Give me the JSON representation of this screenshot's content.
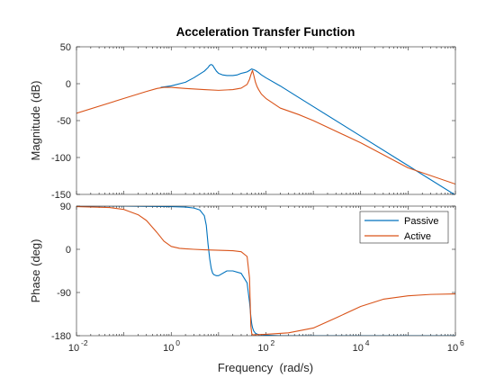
{
  "figure": {
    "title": "Acceleration Transfer Function",
    "xlabel": "Frequency  (rad/s)"
  },
  "colors": {
    "passive": "#0072BD",
    "active": "#D95319",
    "axes": "#262626"
  },
  "chart_data": [
    {
      "type": "line",
      "title": "Acceleration Transfer Function",
      "xlabel": "",
      "ylabel": "Magnitude (dB)",
      "xscale": "log",
      "xlim": [
        0.01,
        1000000
      ],
      "ylim": [
        -150,
        50
      ],
      "yticks": [
        50,
        0,
        -50,
        -100,
        -150
      ],
      "ytick_labels": [
        "50",
        "0",
        "-50",
        "-100",
        "-150"
      ],
      "xtick_labels": [],
      "grid": false,
      "series": [
        {
          "name": "Passive",
          "color": "#0072BD",
          "x": [
            0.6,
            1,
            2,
            3,
            5,
            6,
            6.5,
            7,
            7.5,
            8,
            9,
            10,
            12,
            15,
            20,
            25,
            30,
            35,
            40,
            45,
            50,
            55,
            60,
            70,
            80,
            100,
            200,
            500,
            1000,
            10000,
            100000,
            1000000
          ],
          "y": [
            -5,
            -3,
            2,
            8,
            17,
            22,
            25,
            26,
            25,
            22,
            17,
            14,
            12,
            11,
            11,
            12,
            14,
            15,
            16,
            18,
            20,
            19,
            18,
            15,
            12,
            8,
            -3,
            -19,
            -31,
            -71,
            -111,
            -151
          ]
        },
        {
          "name": "Active",
          "color": "#D95319",
          "x": [
            0.01,
            0.1,
            0.3,
            0.5,
            0.7,
            1,
            2,
            5,
            10,
            20,
            30,
            40,
            45,
            48,
            50,
            52,
            55,
            58,
            60,
            65,
            70,
            80,
            100,
            200,
            500,
            1000,
            10000,
            100000,
            1000000
          ],
          "y": [
            -40,
            -20,
            -10.5,
            -6.5,
            -5,
            -5,
            -6.5,
            -8,
            -9,
            -8,
            -6,
            -1,
            6,
            12,
            15,
            18,
            12,
            6,
            2,
            -4,
            -8,
            -14,
            -20,
            -33,
            -42,
            -50,
            -80,
            -114,
            -136
          ]
        }
      ]
    },
    {
      "type": "line",
      "xlabel": "Frequency  (rad/s)",
      "ylabel": "Phase (deg)",
      "xscale": "log",
      "xlim": [
        0.01,
        1000000
      ],
      "ylim": [
        -180,
        90
      ],
      "yticks": [
        90,
        0,
        -90,
        -180
      ],
      "ytick_labels": [
        "90",
        "0",
        "-90",
        "-180"
      ],
      "xtick_base": "10",
      "xtick_exponents": [
        "-2",
        "0",
        "2",
        "4",
        "6"
      ],
      "xtick_values": [
        0.01,
        1,
        100,
        10000,
        1000000
      ],
      "grid": false,
      "legend": {
        "location": "top-right",
        "entries": [
          "Passive",
          "Active"
        ]
      },
      "series": [
        {
          "name": "Passive",
          "color": "#0072BD",
          "x": [
            0.01,
            0.1,
            1,
            2,
            3,
            4,
            5,
            5.5,
            6,
            6.5,
            7,
            7.5,
            8,
            9,
            10,
            15,
            20,
            30,
            40,
            45,
            48,
            50,
            52,
            55,
            60,
            70,
            100,
            200,
            1000000
          ],
          "y": [
            90,
            90,
            89,
            88,
            86,
            82,
            70,
            50,
            10,
            -20,
            -40,
            -50,
            -53,
            -55,
            -55,
            -45,
            -45,
            -50,
            -70,
            -110,
            -140,
            -155,
            -163,
            -170,
            -175,
            -178,
            -179,
            -180,
            -180
          ]
        },
        {
          "name": "Active",
          "color": "#D95319",
          "x": [
            0.01,
            0.05,
            0.1,
            0.2,
            0.3,
            0.5,
            0.7,
            1,
            1.5,
            2,
            3,
            5,
            10,
            20,
            30,
            40,
            45,
            48,
            50,
            52,
            55,
            60,
            100,
            300,
            1000,
            3000,
            10000,
            30000,
            100000,
            300000,
            1000000
          ],
          "y": [
            89,
            87,
            83,
            72,
            60,
            35,
            17,
            6,
            2,
            1,
            0,
            -1,
            -2,
            -3,
            -5,
            -15,
            -60,
            -160,
            -175,
            -178,
            -178,
            -178,
            -177,
            -174,
            -164,
            -143,
            -119,
            -104,
            -97,
            -94,
            -93
          ]
        }
      ]
    }
  ]
}
